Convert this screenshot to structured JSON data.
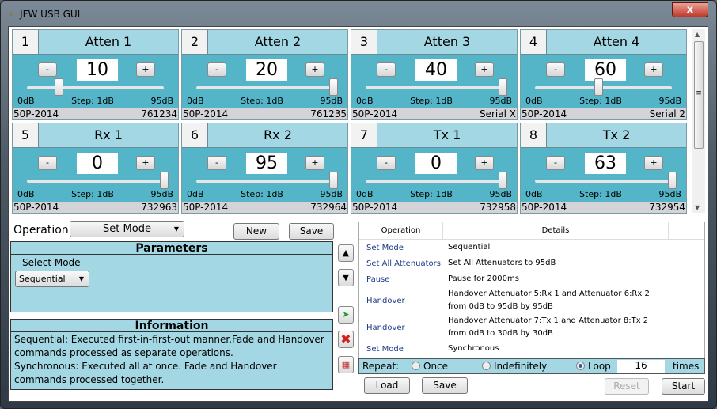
{
  "window": {
    "title": "JFW USB GUI",
    "close_label": "x"
  },
  "tiles": [
    {
      "num": "1",
      "title": "Atten 1",
      "value": "10",
      "slider": 0.23,
      "min": "0dB",
      "step": "Step: 1dB",
      "max": "95dB",
      "model": "50P-2014",
      "serial": "761234"
    },
    {
      "num": "2",
      "title": "Atten 2",
      "value": "20",
      "slider": 1.0,
      "min": "0dB",
      "step": "Step: 1dB",
      "max": "95dB",
      "model": "50P-2014",
      "serial": "761235"
    },
    {
      "num": "3",
      "title": "Atten 3",
      "value": "40",
      "slider": 1.0,
      "min": "0dB",
      "step": "Step: 1dB",
      "max": "95dB",
      "model": "50P-2014",
      "serial": "Serial X"
    },
    {
      "num": "4",
      "title": "Atten 4",
      "value": "60",
      "slider": 0.46,
      "min": "0dB",
      "step": "Step: 1dB",
      "max": "95dB",
      "model": "50P-2014",
      "serial": "Serial 2"
    },
    {
      "num": "5",
      "title": "Rx 1",
      "value": "0",
      "slider": 1.0,
      "min": "0dB",
      "step": "Step: 1dB",
      "max": "95dB",
      "model": "50P-2014",
      "serial": "732963"
    },
    {
      "num": "6",
      "title": "Rx 2",
      "value": "95",
      "slider": 1.0,
      "min": "0dB",
      "step": "Step: 1dB",
      "max": "95dB",
      "model": "50P-2014",
      "serial": "732964"
    },
    {
      "num": "7",
      "title": "Tx 1",
      "value": "0",
      "slider": 1.0,
      "min": "0dB",
      "step": "Step: 1dB",
      "max": "95dB",
      "model": "50P-2014",
      "serial": "732958"
    },
    {
      "num": "8",
      "title": "Tx 2",
      "value": "63",
      "slider": 1.0,
      "min": "0dB",
      "step": "Step: 1dB",
      "max": "95dB",
      "model": "50P-2014",
      "serial": "732954"
    }
  ],
  "buttons": {
    "minus": "-",
    "plus": "+"
  },
  "operation": {
    "label": "Operation",
    "selected": "Set Mode",
    "new": "New",
    "save": "Save"
  },
  "parameters": {
    "title": "Parameters",
    "select_label": "Select Mode",
    "mode": "Sequential"
  },
  "information": {
    "title": "Information",
    "lines": [
      "Sequential: Executed first-in-first-out manner.Fade and Handover commands processed as separate operations.",
      "Synchronous: Executed all at once. Fade and Handover commands processed together."
    ]
  },
  "list": {
    "headers": [
      "Operation",
      "Details"
    ],
    "rows": [
      {
        "op": "Set Mode",
        "details": "Sequential"
      },
      {
        "op": "Set All Attenuators",
        "details": "Set All Attenuators to 95dB"
      },
      {
        "op": "Pause",
        "details": "Pause for 2000ms"
      },
      {
        "op": "Handover",
        "details": "Handover Attenuator 5:Rx 1 and Attenuator 6:Rx 2 from 0dB to 95dB by 95dB"
      },
      {
        "op": "Handover",
        "details": "Handover Attenuator 7:Tx 1 and Attenuator 8:Tx 2 from 0dB to 30dB by 30dB"
      },
      {
        "op": "Set Mode",
        "details": "Synchronous"
      }
    ]
  },
  "repeat": {
    "label": "Repeat:",
    "once": "Once",
    "indefinitely": "Indefinitely",
    "loop": "Loop",
    "selected": "Loop",
    "count": "16",
    "times": "times"
  },
  "bottom": {
    "load": "Load",
    "save": "Save",
    "reset": "Reset",
    "start": "Start"
  }
}
